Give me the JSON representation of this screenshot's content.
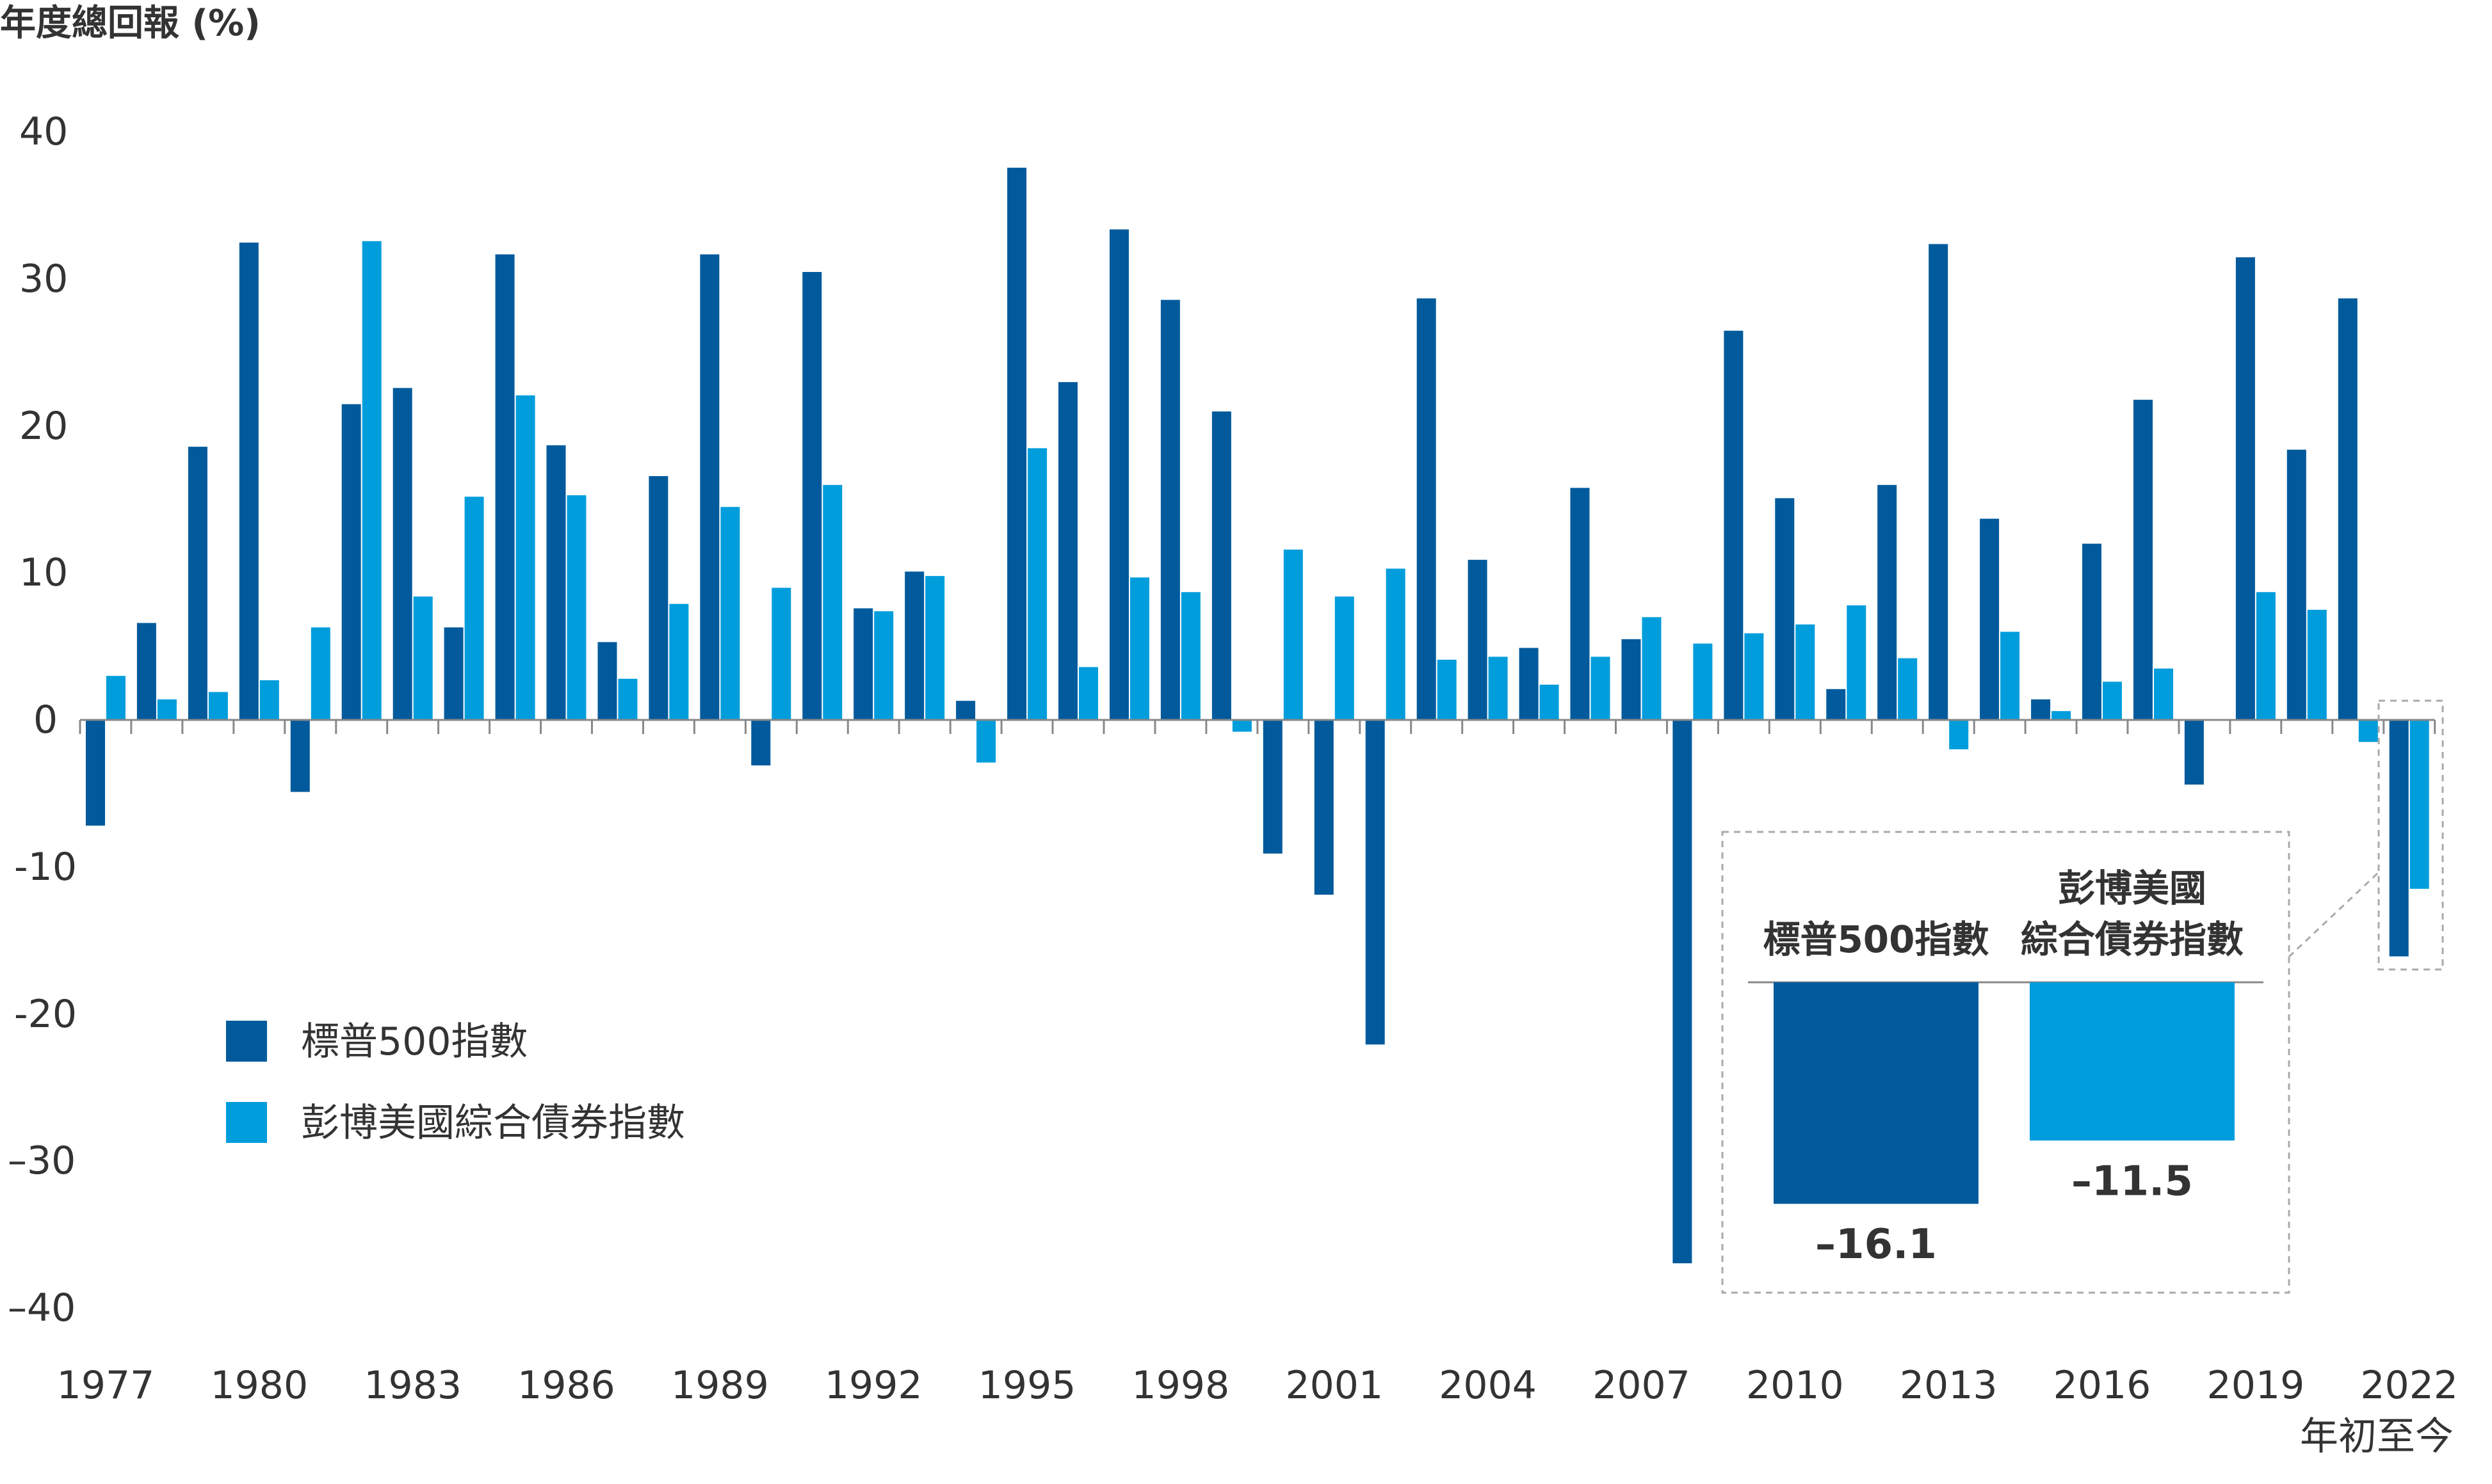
{
  "chart_data": {
    "type": "bar",
    "ylabel": "年度總回報 (%)",
    "ylim": [
      -40,
      40
    ],
    "yticks": [
      "40",
      "30",
      "20",
      "10",
      "0",
      "-10",
      "-20",
      "–30",
      "–40"
    ],
    "categories": [
      "1977",
      "1978",
      "1979",
      "1980",
      "1981",
      "1982",
      "1983",
      "1984",
      "1985",
      "1986",
      "1987",
      "1988",
      "1989",
      "1990",
      "1991",
      "1992",
      "1993",
      "1994",
      "1995",
      "1996",
      "1997",
      "1998",
      "1999",
      "2000",
      "2001",
      "2002",
      "2003",
      "2004",
      "2005",
      "2006",
      "2007",
      "2008",
      "2009",
      "2010",
      "2011",
      "2012",
      "2013",
      "2014",
      "2015",
      "2016",
      "2017",
      "2018",
      "2019",
      "2020",
      "2021",
      "2022"
    ],
    "xtick_labels": [
      "1977",
      "1980",
      "1983",
      "1986",
      "1989",
      "1992",
      "1995",
      "1998",
      "2001",
      "2004",
      "2007",
      "2010",
      "2013",
      "2016",
      "2019",
      "2022"
    ],
    "x_annotation": "年初至今",
    "series": [
      {
        "name": "標普500指數",
        "color": "#005a9c",
        "values": [
          -7.2,
          6.6,
          18.6,
          32.5,
          -4.9,
          21.5,
          22.6,
          6.3,
          31.7,
          18.7,
          5.3,
          16.6,
          31.7,
          -3.1,
          30.5,
          7.6,
          10.1,
          1.3,
          37.6,
          23.0,
          33.4,
          28.6,
          21.0,
          -9.1,
          -11.9,
          -22.1,
          28.7,
          10.9,
          4.9,
          15.8,
          5.5,
          -37.0,
          26.5,
          15.1,
          2.1,
          16.0,
          32.4,
          13.7,
          1.4,
          12.0,
          21.8,
          -4.4,
          31.5,
          18.4,
          28.7,
          -16.1
        ]
      },
      {
        "name": "彭博美國綜合債券指數",
        "color": "#009ddc",
        "values": [
          3.0,
          1.4,
          1.9,
          2.7,
          6.3,
          32.6,
          8.4,
          15.2,
          22.1,
          15.3,
          2.8,
          7.9,
          14.5,
          9.0,
          16.0,
          7.4,
          9.8,
          -2.9,
          18.5,
          3.6,
          9.7,
          8.7,
          -0.8,
          11.6,
          8.4,
          10.3,
          4.1,
          4.3,
          2.4,
          4.3,
          7.0,
          5.2,
          5.9,
          6.5,
          7.8,
          4.2,
          -2.0,
          6.0,
          0.6,
          2.6,
          3.5,
          0.0,
          8.7,
          7.5,
          -1.5,
          -11.5
        ]
      }
    ],
    "inset": {
      "headers": [
        [
          "標普500指數"
        ],
        [
          "彭博美國",
          "綜合債券指數"
        ]
      ],
      "values": [
        -16.1,
        -11.5
      ],
      "value_labels": [
        "–16.1",
        "–11.5"
      ]
    }
  }
}
